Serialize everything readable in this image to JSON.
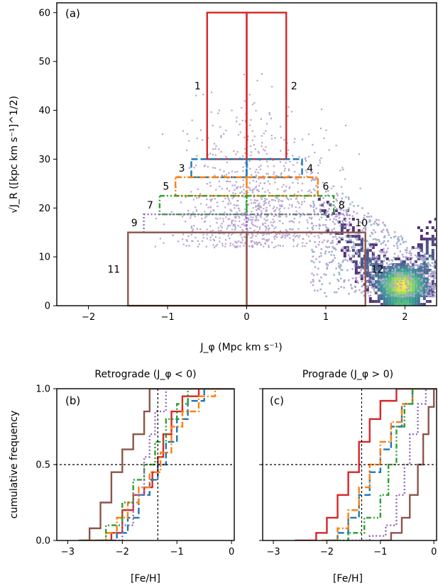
{
  "chart_data": [
    {
      "type": "heatmap",
      "panel_label": "(a)",
      "xlabel": "J_φ (Mpc km s⁻¹)",
      "ylabel": "√J_R ([kpc km s⁻¹]^1/2)",
      "xlim": [
        -2.4,
        2.4
      ],
      "ylim": [
        0,
        62
      ],
      "xticks": [
        -2,
        -1,
        0,
        1,
        2
      ],
      "yticks": [
        0,
        10,
        20,
        30,
        40,
        50,
        60
      ],
      "xtick_labels": [
        "−2",
        "−1",
        "0",
        "1",
        "2"
      ],
      "ytick_labels": [
        "0",
        "10",
        "20",
        "30",
        "40",
        "50",
        "60"
      ],
      "grid": false,
      "boxes": [
        {
          "label": "1",
          "x0": -0.5,
          "x1": 0,
          "y0": 30,
          "y1": 60,
          "color": "#d62728",
          "style": "solid",
          "label_x": -0.62,
          "label_y": 45
        },
        {
          "label": "2",
          "x0": 0,
          "x1": 0.5,
          "y0": 30,
          "y1": 60,
          "color": "#d62728",
          "style": "solid",
          "label_x": 0.6,
          "label_y": 45
        },
        {
          "label": "3",
          "x0": -0.7,
          "x1": 0,
          "y0": 26.3,
          "y1": 30,
          "color": "#1f77b4",
          "style": "dashed",
          "label_x": -0.82,
          "label_y": 28.2
        },
        {
          "label": "4",
          "x0": 0,
          "x1": 0.7,
          "y0": 26.3,
          "y1": 30,
          "color": "#1f77b4",
          "style": "dashed",
          "label_x": 0.8,
          "label_y": 28.2
        },
        {
          "label": "5",
          "x0": -0.9,
          "x1": 0,
          "y0": 22.5,
          "y1": 26.3,
          "color": "#ff7f0e",
          "style": "dashdot",
          "label_x": -1.02,
          "label_y": 24.5
        },
        {
          "label": "6",
          "x0": 0,
          "x1": 0.9,
          "y0": 22.5,
          "y1": 26.3,
          "color": "#ff7f0e",
          "style": "dashdot",
          "label_x": 1.0,
          "label_y": 24.5
        },
        {
          "label": "7",
          "x0": -1.1,
          "x1": 0,
          "y0": 18.7,
          "y1": 22.5,
          "color": "#2ca02c",
          "style": "dashdotdot",
          "label_x": -1.22,
          "label_y": 20.6
        },
        {
          "label": "8",
          "x0": 0,
          "x1": 1.1,
          "y0": 18.7,
          "y1": 22.5,
          "color": "#2ca02c",
          "style": "dashdotdot",
          "label_x": 1.2,
          "label_y": 20.6
        },
        {
          "label": "9",
          "x0": -1.3,
          "x1": 0,
          "y0": 15,
          "y1": 18.7,
          "color": "#9467bd",
          "style": "dotted",
          "label_x": -1.42,
          "label_y": 17.0
        },
        {
          "label": "10",
          "x0": 0,
          "x1": 1.3,
          "y0": 15,
          "y1": 18.7,
          "color": "#9467bd",
          "style": "dotted",
          "label_x": 1.45,
          "label_y": 17.0
        },
        {
          "label": "11",
          "x0": -1.5,
          "x1": 0,
          "y0": 0,
          "y1": 15,
          "color": "#8c564b",
          "style": "solid",
          "label_x": -1.68,
          "label_y": 7.5
        },
        {
          "label": "12",
          "x0": 0,
          "x1": 1.5,
          "y0": 0,
          "y1": 15,
          "color": "#8c564b",
          "style": "solid",
          "label_x": 1.65,
          "label_y": 7.5
        }
      ],
      "density": {
        "colormap": "viridis",
        "core": {
          "center": [
            1.95,
            4.5
          ],
          "spread": [
            0.3,
            3.5
          ]
        },
        "halo": {
          "x_range": [
            -0.8,
            0.9
          ],
          "y_range": [
            10,
            50
          ]
        }
      }
    },
    {
      "type": "line",
      "panel_label": "(b)",
      "title": "Retrograde (J_φ < 0)",
      "xlabel": "[Fe/H]",
      "ylabel": "cumulative frequency",
      "xlim": [
        -3.2,
        0.05
      ],
      "ylim": [
        0,
        1
      ],
      "xticks": [
        -3,
        -2,
        -1,
        0
      ],
      "yticks": [
        0,
        0.5,
        1
      ],
      "xtick_labels": [
        "−3",
        "−2",
        "−1",
        "0"
      ],
      "ytick_labels": [
        "0.0",
        "0.5",
        "1.0"
      ],
      "reference_lines": {
        "x": -1.35,
        "y": 0.5
      },
      "series": [
        {
          "color": "#d62728",
          "style": "solid",
          "x": [
            -2.5,
            -2.2,
            -2.0,
            -1.8,
            -1.6,
            -1.45,
            -1.35,
            -1.25,
            -1.1,
            -0.9,
            -0.6
          ],
          "y": [
            0,
            0.05,
            0.2,
            0.3,
            0.35,
            0.45,
            0.55,
            0.7,
            0.85,
            0.95,
            1.0
          ]
        },
        {
          "color": "#1f77b4",
          "style": "dashed",
          "x": [
            -2.4,
            -2.1,
            -1.9,
            -1.7,
            -1.5,
            -1.35,
            -1.2,
            -1.0,
            -0.8,
            -0.5
          ],
          "y": [
            0,
            0.05,
            0.15,
            0.3,
            0.4,
            0.5,
            0.65,
            0.8,
            0.92,
            1.0
          ]
        },
        {
          "color": "#ff7f0e",
          "style": "dashdot",
          "x": [
            -2.6,
            -2.3,
            -2.1,
            -1.9,
            -1.7,
            -1.5,
            -1.3,
            -1.1,
            -0.9,
            -0.6,
            -0.3
          ],
          "y": [
            0,
            0.05,
            0.15,
            0.25,
            0.35,
            0.45,
            0.58,
            0.75,
            0.85,
            0.95,
            1.0
          ]
        },
        {
          "color": "#2ca02c",
          "style": "dashdotdot",
          "x": [
            -2.7,
            -2.3,
            -2.0,
            -1.8,
            -1.6,
            -1.4,
            -1.2,
            -1.0,
            -0.8
          ],
          "y": [
            0,
            0.1,
            0.25,
            0.4,
            0.5,
            0.65,
            0.8,
            0.9,
            1.0
          ]
        },
        {
          "color": "#9467bd",
          "style": "dotted",
          "x": [
            -2.2,
            -2.0,
            -1.8,
            -1.6,
            -1.5,
            -1.4,
            -1.2
          ],
          "y": [
            0,
            0.1,
            0.3,
            0.55,
            0.7,
            0.85,
            1.0
          ]
        },
        {
          "color": "#8c564b",
          "style": "solid",
          "x": [
            -2.8,
            -2.6,
            -2.4,
            -2.2,
            -2.0,
            -1.8,
            -1.6,
            -1.5
          ],
          "y": [
            0,
            0.08,
            0.25,
            0.45,
            0.6,
            0.7,
            0.85,
            1.0
          ]
        }
      ]
    },
    {
      "type": "line",
      "panel_label": "(c)",
      "title": "Prograde (J_φ > 0)",
      "xlabel": "[Fe/H]",
      "ylabel": "",
      "xlim": [
        -3.2,
        0.05
      ],
      "ylim": [
        0,
        1
      ],
      "xticks": [
        -3,
        -2,
        -1,
        0
      ],
      "yticks": [
        0,
        0.5,
        1
      ],
      "xtick_labels": [
        "−3",
        "−2",
        "−1",
        "0"
      ],
      "reference_lines": {
        "x": -1.35,
        "y": 0.5
      },
      "series": [
        {
          "color": "#d62728",
          "style": "solid",
          "x": [
            -2.6,
            -2.2,
            -2.0,
            -1.8,
            -1.6,
            -1.4,
            -1.2,
            -1.0,
            -0.7
          ],
          "y": [
            0,
            0.05,
            0.15,
            0.3,
            0.45,
            0.65,
            0.8,
            0.92,
            1.0
          ]
        },
        {
          "color": "#1f77b4",
          "style": "dashed",
          "x": [
            -2.0,
            -1.8,
            -1.6,
            -1.4,
            -1.2,
            -1.0,
            -0.8,
            -0.6,
            -0.4
          ],
          "y": [
            0,
            0.05,
            0.15,
            0.3,
            0.45,
            0.6,
            0.75,
            0.9,
            1.0
          ]
        },
        {
          "color": "#ff7f0e",
          "style": "dashdot",
          "x": [
            -2.1,
            -1.8,
            -1.6,
            -1.4,
            -1.2,
            -1.0,
            -0.8,
            -0.6,
            -0.4
          ],
          "y": [
            0,
            0.08,
            0.2,
            0.35,
            0.5,
            0.65,
            0.78,
            0.9,
            1.0
          ]
        },
        {
          "color": "#2ca02c",
          "style": "dashdotdot",
          "x": [
            -1.9,
            -1.6,
            -1.3,
            -1.0,
            -0.85,
            -0.7,
            -0.55,
            -0.4
          ],
          "y": [
            0,
            0.05,
            0.15,
            0.3,
            0.5,
            0.75,
            0.9,
            1.0
          ]
        },
        {
          "color": "#9467bd",
          "style": "dotted",
          "x": [
            -1.6,
            -1.2,
            -0.9,
            -0.7,
            -0.55,
            -0.45,
            -0.3,
            -0.15
          ],
          "y": [
            0,
            0.03,
            0.1,
            0.3,
            0.5,
            0.7,
            0.9,
            1.0
          ]
        },
        {
          "color": "#8c564b",
          "style": "solid",
          "x": [
            -1.0,
            -0.8,
            -0.6,
            -0.45,
            -0.3,
            -0.2,
            -0.1,
            0.0
          ],
          "y": [
            0,
            0.05,
            0.15,
            0.3,
            0.5,
            0.7,
            0.88,
            1.0
          ]
        }
      ]
    }
  ]
}
